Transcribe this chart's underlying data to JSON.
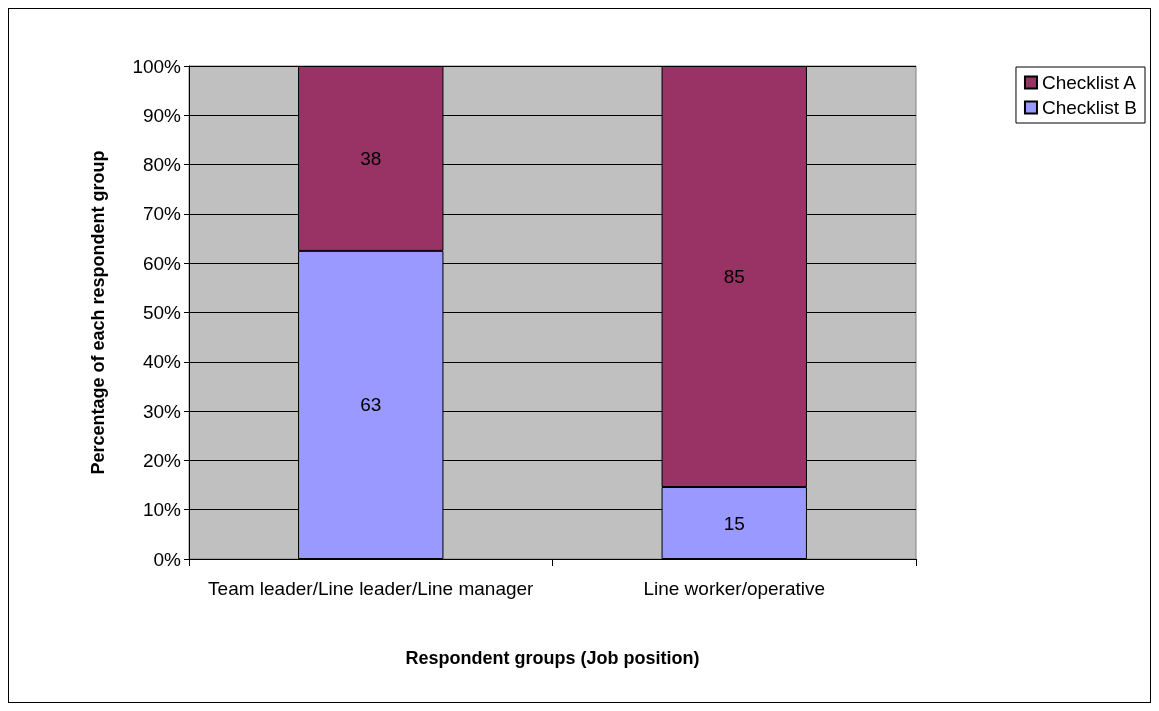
{
  "chart_data": {
    "type": "bar",
    "stacked": true,
    "xlabel": "Respondent groups (Job position)",
    "ylabel": "Percentage of each respondent group",
    "categories": [
      "Team leader/Line leader/Line manager",
      "Line worker/operative"
    ],
    "series": [
      {
        "name": "Checklist B",
        "color": "#9999ff",
        "values": [
          62.5,
          14.6
        ],
        "value_labels": [
          "63",
          "15"
        ]
      },
      {
        "name": "Checklist A",
        "color": "#993366",
        "values": [
          37.5,
          85.4
        ],
        "value_labels": [
          "38",
          "85"
        ]
      }
    ],
    "ylim": [
      0,
      100
    ],
    "yticks": [
      {
        "value": 0,
        "label": "0%"
      },
      {
        "value": 10,
        "label": "10%"
      },
      {
        "value": 20,
        "label": "20%"
      },
      {
        "value": 30,
        "label": "30%"
      },
      {
        "value": 40,
        "label": "40%"
      },
      {
        "value": 50,
        "label": "50%"
      },
      {
        "value": 60,
        "label": "60%"
      },
      {
        "value": 70,
        "label": "70%"
      },
      {
        "value": 80,
        "label": "80%"
      },
      {
        "value": 90,
        "label": "90%"
      },
      {
        "value": 100,
        "label": "100%"
      }
    ],
    "grid": "y",
    "legend": "top right"
  }
}
